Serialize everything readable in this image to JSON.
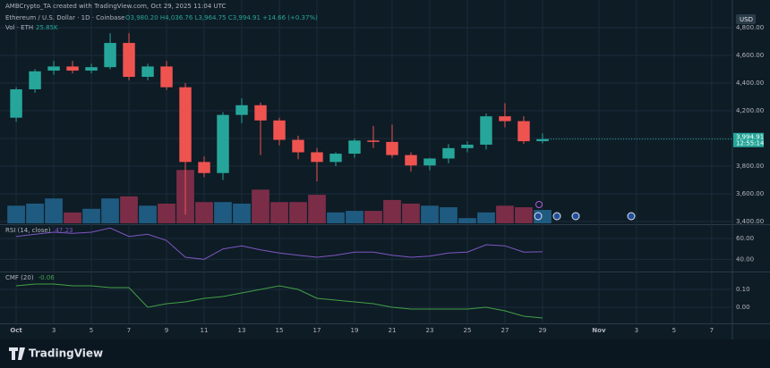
{
  "header": {
    "credit": "AMBCrypto_TA created with TradingView.com, Oct 29, 2025 11:04 UTC",
    "legend": "Ethereum / U.S. Dollar · 1D · Coinbase",
    "ohlc": "O3,980.20 H4,036.76 L3,964.75 C3,994.91 +14.66 (+0.37%)",
    "volume": "Vol · ETH",
    "volume_value": "25.85K"
  },
  "chart_data": [
    {
      "type": "candlestick",
      "currency": "USD",
      "x": [
        1,
        2,
        3,
        4,
        5,
        6,
        7,
        8,
        9,
        10,
        11,
        12,
        13,
        14,
        15,
        16,
        17,
        18,
        19,
        20,
        21,
        22,
        23,
        24,
        25,
        26,
        27,
        28,
        29
      ],
      "open": [
        4150,
        4355,
        4490,
        4520,
        4490,
        4515,
        4690,
        4445,
        4520,
        4370,
        3830,
        3750,
        4170,
        4240,
        4130,
        3990,
        3900,
        3830,
        3890,
        3985,
        3975,
        3880,
        3805,
        3855,
        3930,
        3955,
        4160,
        4125,
        3980.2
      ],
      "high": [
        4370,
        4500,
        4560,
        4560,
        4540,
        4760,
        4760,
        4540,
        4560,
        4400,
        3870,
        4190,
        4290,
        4260,
        4150,
        4020,
        3930,
        3900,
        4000,
        4090,
        4100,
        3900,
        3860,
        3960,
        3980,
        4180,
        4255,
        4160,
        4036.76
      ],
      "low": [
        4120,
        4330,
        4460,
        4470,
        4470,
        4500,
        4420,
        4420,
        4350,
        3450,
        3720,
        3700,
        4110,
        3880,
        3950,
        3850,
        3690,
        3800,
        3860,
        3930,
        3860,
        3760,
        3770,
        3820,
        3900,
        3920,
        4080,
        3960,
        3964.75
      ],
      "close": [
        4355,
        4485,
        4520,
        4490,
        4515,
        4690,
        4445,
        4520,
        4370,
        3830,
        3750,
        4170,
        4240,
        4130,
        3990,
        3900,
        3830,
        3890,
        3985,
        3975,
        3880,
        3805,
        3855,
        3930,
        3955,
        4160,
        4125,
        3980,
        3994.91
      ],
      "last_label": "3,994.91",
      "countdown": "12:55:14",
      "volume": [
        34,
        38,
        48,
        21,
        28,
        48,
        52,
        34,
        38,
        103,
        41,
        41,
        38,
        65,
        41,
        41,
        55,
        21,
        24,
        24,
        45,
        38,
        34,
        31,
        10,
        21,
        34,
        31,
        25.85
      ],
      "vlim": [
        0,
        400
      ],
      "up_color": "#26a69a",
      "down_color": "#ef5350",
      "volume_up_color": "#1f5b80",
      "volume_down_color": "#7b2d47",
      "xlim": [
        0.14,
        39.1
      ],
      "xticks": [
        {
          "value": 1,
          "label": "Oct"
        },
        3,
        5,
        7,
        9,
        11,
        13,
        15,
        17,
        19,
        21,
        23,
        25,
        27,
        29,
        {
          "value": 32,
          "label": "Nov"
        },
        {
          "value": 34,
          "label": "3"
        },
        {
          "value": 36,
          "label": "5"
        },
        {
          "value": 38,
          "label": "7"
        }
      ],
      "ylim": [
        3387,
        4884
      ],
      "yticks": [
        {
          "value": 4800,
          "label": "4,800.00"
        },
        {
          "value": 4600,
          "label": "4,600.00"
        },
        {
          "value": 4400,
          "label": "4,400.00"
        },
        {
          "value": 4200,
          "label": "4,200.00"
        },
        {
          "value": 4000,
          "label": "4,000.00"
        },
        {
          "value": 3800,
          "label": "3,800.00"
        },
        {
          "value": 3600,
          "label": "3,600.00"
        },
        {
          "value": 3400,
          "label": "3,400.00"
        }
      ],
      "grid": true
    },
    {
      "type": "line",
      "title": "RSI (14, close)",
      "legend_value": "47.23",
      "color": "#7e57c2",
      "x": [
        1,
        2,
        3,
        4,
        5,
        6,
        7,
        8,
        9,
        10,
        11,
        12,
        13,
        14,
        15,
        16,
        17,
        18,
        19,
        20,
        21,
        22,
        23,
        24,
        25,
        26,
        27,
        28,
        29
      ],
      "values": [
        62,
        64,
        66,
        65,
        66,
        70,
        62,
        64,
        58,
        42,
        40,
        50,
        53,
        49,
        46,
        44,
        42,
        44,
        47,
        47,
        44,
        42,
        43,
        46,
        47,
        54,
        53,
        47,
        47.23
      ],
      "xlim": [
        0.14,
        39.1
      ],
      "ylim": [
        30,
        72
      ],
      "yticks": [
        {
          "value": 60,
          "label": "60.00"
        },
        {
          "value": 40,
          "label": "40.00"
        }
      ]
    },
    {
      "type": "line",
      "title": "CMF (20)",
      "legend_value": "-0.06",
      "color": "#43a047",
      "x": [
        1,
        2,
        3,
        4,
        5,
        6,
        7,
        8,
        9,
        10,
        11,
        12,
        13,
        14,
        15,
        16,
        17,
        18,
        19,
        20,
        21,
        22,
        23,
        24,
        25,
        26,
        27,
        28,
        29
      ],
      "values": [
        0.12,
        0.13,
        0.13,
        0.12,
        0.12,
        0.11,
        0.11,
        0.0,
        0.02,
        0.03,
        0.05,
        0.06,
        0.08,
        0.1,
        0.12,
        0.1,
        0.05,
        0.04,
        0.03,
        0.02,
        0.0,
        -0.01,
        -0.01,
        -0.01,
        -0.01,
        0.0,
        -0.02,
        -0.05,
        -0.06
      ],
      "xlim": [
        0.14,
        39.1
      ],
      "ylim": [
        -0.08,
        0.19
      ],
      "yticks": [
        {
          "value": 0.1,
          "label": "0.10"
        },
        {
          "value": 0,
          "label": "0.00"
        }
      ]
    }
  ],
  "footer": {
    "brand": "TradingView"
  }
}
